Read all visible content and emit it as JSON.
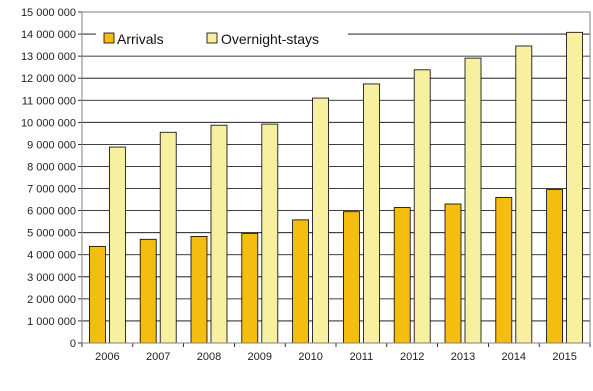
{
  "chart_data": {
    "type": "bar",
    "categories": [
      "2006",
      "2007",
      "2008",
      "2009",
      "2010",
      "2011",
      "2012",
      "2013",
      "2014",
      "2015"
    ],
    "series": [
      {
        "name": "Arrivals",
        "color": "#f5bd0f",
        "values": [
          4380000,
          4700000,
          4830000,
          4970000,
          5580000,
          5950000,
          6140000,
          6300000,
          6600000,
          6950000
        ]
      },
      {
        "name": "Overnight-stays",
        "color": "#f7f0a0",
        "values": [
          8880000,
          9550000,
          9870000,
          9920000,
          11100000,
          11740000,
          12380000,
          12910000,
          13460000,
          14080000
        ]
      }
    ],
    "yticks": [
      "0",
      "1 000 000",
      "2 000 000",
      "3 000 000",
      "4 000 000",
      "5 000 000",
      "6 000 000",
      "7 000 000",
      "8 000 000",
      "9 000 000",
      "10 000 000",
      "11 000 000",
      "12 000 000",
      "13 000 000",
      "14 000 000",
      "15 000 000"
    ],
    "ylim": [
      0,
      15000000
    ],
    "grid": true,
    "legend_position": "top-left",
    "title": "",
    "xlabel": "",
    "ylabel": ""
  }
}
